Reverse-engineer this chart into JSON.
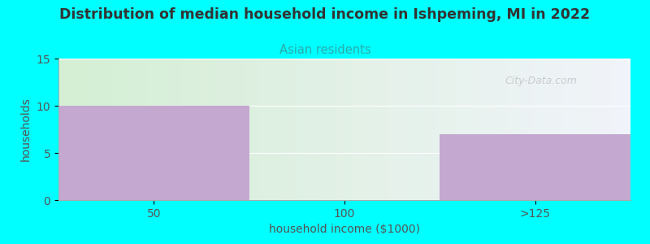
{
  "title": "Distribution of median household income in Ishpeming, MI in 2022",
  "subtitle": "Asian residents",
  "xlabel": "household income ($1000)",
  "ylabel": "households",
  "background_color": "#00FFFF",
  "plot_bg_color_left": "#dff2df",
  "plot_bg_color_right": "#f8f8ff",
  "bar_color": "#C4A8D0",
  "subtitle_color": "#2AACAC",
  "title_color": "#333333",
  "categories": [
    "50",
    "100",
    ">125"
  ],
  "values": [
    10,
    0,
    7
  ],
  "ylim": [
    0,
    15
  ],
  "yticks": [
    0,
    5,
    10,
    15
  ],
  "watermark": "City-Data.com"
}
